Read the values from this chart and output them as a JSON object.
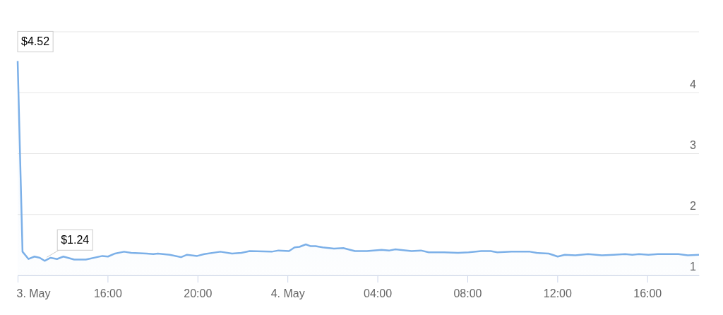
{
  "chart_data": {
    "type": "area",
    "grid": "y",
    "color": "#7cb0e8",
    "x": [
      "--05-03T12:00",
      "--05-03T12:13",
      "--05-03T12:29",
      "--05-03T12:45",
      "--05-03T12:59",
      "--05-03T13:12",
      "--05-03T13:28",
      "--05-03T13:45",
      "--05-03T14:02",
      "--05-03T14:31",
      "--05-03T15:02",
      "--05-03T15:46",
      "--05-03T16:01",
      "--05-03T16:20",
      "--05-03T16:44",
      "--05-03T17:03",
      "--05-03T17:44",
      "--05-03T18:02",
      "--05-03T18:14",
      "--05-03T18:46",
      "--05-03T19:16",
      "--05-03T19:32",
      "--05-03T19:59",
      "--05-03T20:18",
      "--05-03T21:01",
      "--05-03T21:32",
      "--05-03T21:57",
      "--05-03T22:19",
      "--05-03T23:18",
      "--05-03T23:36",
      "--05-04T00:04",
      "--05-04T00:19",
      "--05-04T00:32",
      "--05-04T00:49",
      "--05-04T01:02",
      "--05-04T01:15",
      "--05-04T01:34",
      "--05-04T02:04",
      "--05-04T02:29",
      "--05-04T03:00",
      "--05-04T03:32",
      "--05-04T04:11",
      "--05-04T04:32",
      "--05-04T04:48",
      "--05-04T05:31",
      "--05-04T05:56",
      "--05-04T06:17",
      "--05-04T06:58",
      "--05-04T07:35",
      "--05-04T08:03",
      "--05-04T08:37",
      "--05-04T09:02",
      "--05-04T09:20",
      "--05-04T09:58",
      "--05-04T10:47",
      "--05-04T11:05",
      "--05-04T11:37",
      "--05-04T12:01",
      "--05-04T12:20",
      "--05-04T12:48",
      "--05-04T13:22",
      "--05-04T13:59",
      "--05-04T14:30",
      "--05-04T15:01",
      "--05-04T15:20",
      "--05-04T15:38",
      "--05-04T16:03",
      "--05-04T16:28",
      "--05-04T17:23",
      "--05-04T17:48",
      "--05-04T18:18"
    ],
    "values": [
      4.52,
      1.39,
      1.27,
      1.31,
      1.29,
      1.24,
      1.29,
      1.27,
      1.31,
      1.26,
      1.26,
      1.32,
      1.31,
      1.36,
      1.39,
      1.37,
      1.36,
      1.35,
      1.36,
      1.34,
      1.3,
      1.34,
      1.32,
      1.35,
      1.39,
      1.36,
      1.37,
      1.4,
      1.39,
      1.41,
      1.4,
      1.46,
      1.47,
      1.51,
      1.48,
      1.48,
      1.46,
      1.44,
      1.45,
      1.4,
      1.4,
      1.42,
      1.41,
      1.43,
      1.4,
      1.41,
      1.38,
      1.38,
      1.37,
      1.38,
      1.4,
      1.4,
      1.38,
      1.39,
      1.39,
      1.37,
      1.36,
      1.31,
      1.34,
      1.33,
      1.35,
      1.33,
      1.34,
      1.35,
      1.34,
      1.35,
      1.34,
      1.35,
      1.35,
      1.33,
      1.34
    ],
    "xlim": [
      "--05-03T12:00",
      "--05-04T18:18"
    ],
    "xticks": [
      {
        "value": "--05-03T12:00",
        "label": "3. May"
      },
      {
        "value": "--05-03T16:00",
        "label": "16:00"
      },
      {
        "value": "--05-03T20:00",
        "label": "20:00"
      },
      {
        "value": "--05-04T00:00",
        "label": "4. May"
      },
      {
        "value": "--05-04T04:00",
        "label": "04:00"
      },
      {
        "value": "--05-04T08:00",
        "label": "08:00"
      },
      {
        "value": "--05-04T12:00",
        "label": "12:00"
      },
      {
        "value": "--05-04T16:00",
        "label": "16:00"
      }
    ],
    "ylim": [
      1,
      5
    ],
    "yticks": [
      1,
      2,
      3,
      4,
      {
        "value": 5,
        "label": null
      }
    ],
    "annotations": [
      {
        "text": "$4.52",
        "x": "--05-03T12:00",
        "y": 4.52
      },
      {
        "text": "$1.24",
        "x": "--05-03T13:12",
        "y": 1.24
      }
    ]
  }
}
